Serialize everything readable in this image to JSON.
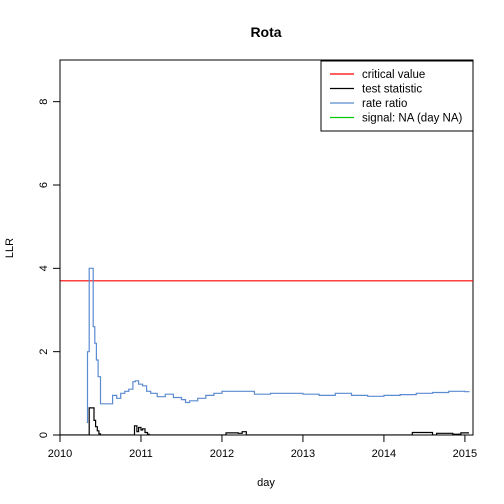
{
  "chart_data": {
    "type": "line",
    "title": "Rota",
    "xlabel": "day",
    "ylabel": "LLR",
    "xlim": [
      2010.0,
      2015.1
    ],
    "ylim": [
      0,
      9
    ],
    "x_ticks": [
      2010,
      2011,
      2012,
      2013,
      2014,
      2015
    ],
    "y_ticks": [
      0,
      2,
      4,
      6,
      8
    ],
    "grid": false,
    "legend_position": "top-right",
    "critical_value": 3.7,
    "legend": [
      {
        "label": "critical value",
        "color": "#ff0000"
      },
      {
        "label": "test statistic",
        "color": "#000000"
      },
      {
        "label": "rate ratio",
        "color": "#5b8bd0"
      },
      {
        "label": "signal: NA (day NA)",
        "color": "#00cc00"
      }
    ],
    "series": [
      {
        "name": "critical value",
        "color": "#ff0000",
        "x": [
          2009.8,
          2015.3
        ],
        "y": [
          3.7,
          3.7
        ]
      },
      {
        "name": "test statistic",
        "color": "#000000",
        "x": [
          2010.0,
          2010.35,
          2010.36,
          2010.4,
          2010.42,
          2010.44,
          2010.46,
          2010.48,
          2010.5,
          2010.9,
          2010.92,
          2010.95,
          2010.97,
          2011.0,
          2011.02,
          2011.05,
          2011.08,
          2011.1,
          2012.0,
          2012.05,
          2012.2,
          2012.25,
          2012.3,
          2014.3,
          2014.35,
          2014.6,
          2014.65,
          2014.85,
          2014.95,
          2015.05
        ],
        "y": [
          0,
          0,
          0.65,
          0.65,
          0.35,
          0.2,
          0.1,
          0.03,
          0,
          0,
          0.22,
          0.08,
          0.18,
          0.12,
          0.15,
          0.06,
          0.02,
          0,
          0,
          0.05,
          0.04,
          0.08,
          0,
          0,
          0.06,
          0,
          0.04,
          0.02,
          0.05,
          0.05
        ]
      },
      {
        "name": "rate ratio",
        "color": "#5b8bd0",
        "x": [
          2010.33,
          2010.34,
          2010.36,
          2010.4,
          2010.41,
          2010.43,
          2010.45,
          2010.47,
          2010.5,
          2010.6,
          2010.65,
          2010.7,
          2010.75,
          2010.8,
          2010.85,
          2010.9,
          2010.93,
          2010.97,
          2011.02,
          2011.07,
          2011.12,
          2011.2,
          2011.3,
          2011.4,
          2011.5,
          2011.55,
          2011.6,
          2011.7,
          2011.8,
          2011.9,
          2012.0,
          2012.2,
          2012.4,
          2012.6,
          2012.8,
          2013.0,
          2013.2,
          2013.4,
          2013.6,
          2013.8,
          2014.0,
          2014.2,
          2014.4,
          2014.6,
          2014.8,
          2015.0,
          2015.05
        ],
        "y": [
          0.3,
          2.0,
          4.0,
          4.0,
          2.6,
          2.2,
          1.8,
          1.4,
          0.75,
          0.75,
          0.95,
          0.88,
          1.0,
          1.05,
          1.1,
          1.28,
          1.3,
          1.22,
          1.18,
          1.05,
          1.0,
          0.92,
          0.98,
          0.9,
          0.85,
          0.78,
          0.82,
          0.88,
          0.95,
          1.0,
          1.05,
          1.05,
          0.98,
          1.0,
          1.0,
          0.98,
          0.95,
          1.0,
          0.95,
          0.93,
          0.95,
          0.97,
          1.0,
          1.02,
          1.05,
          1.04,
          1.03
        ]
      }
    ]
  }
}
